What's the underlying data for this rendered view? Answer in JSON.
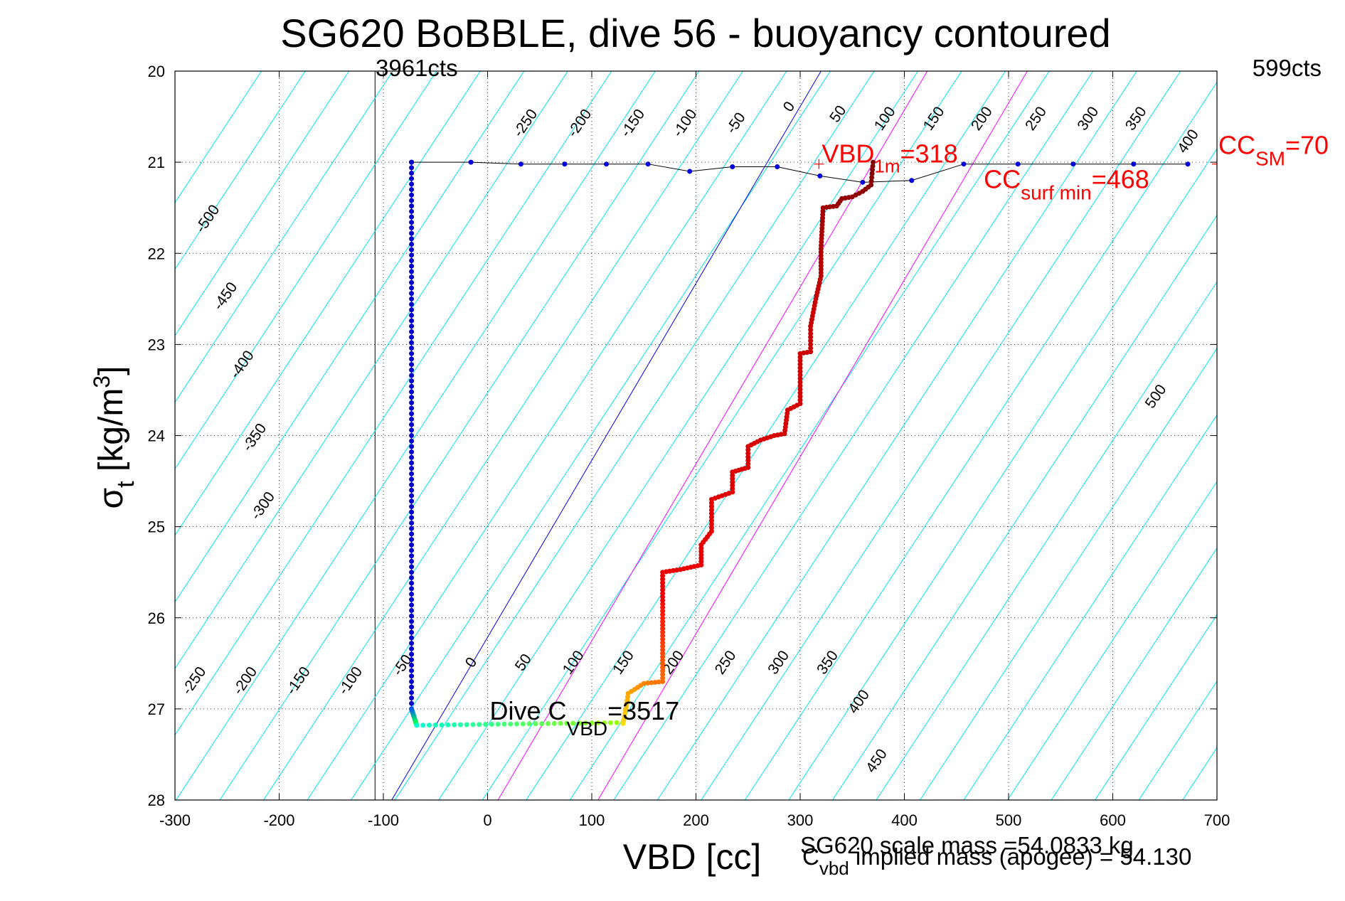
{
  "chart_data": {
    "type": "scatter",
    "title": "SG620 BoBBLE, dive 56 - buoyancy contoured",
    "xlabel": "VBD [cc]",
    "ylabel": {
      "main": "σ",
      "sub": "t",
      "unit_pre": " [kg/m",
      "unit_sup": "3",
      "unit_post": "]"
    },
    "xlim": [
      -300,
      700
    ],
    "ylim": [
      20,
      28
    ],
    "y_reversed": true,
    "grid": true,
    "xticks": [
      "-300",
      "-200",
      "-100",
      "0",
      "100",
      "200",
      "300",
      "400",
      "500",
      "600",
      "700"
    ],
    "yticks": [
      "20",
      "21",
      "22",
      "23",
      "24",
      "25",
      "26",
      "27",
      "28"
    ],
    "corner_labels": {
      "left": "3961cts",
      "right": "599cts"
    },
    "vertical_line_vbd": -108,
    "annotations": {
      "vbd_1m": {
        "main": "VBD",
        "sub": "1m",
        "value": "=318",
        "x": 318,
        "y": 21.02
      },
      "cc_surf_min": {
        "main": "CC",
        "sub": "surf min",
        "value": "=468",
        "x": 468,
        "y": 21.05
      },
      "cc_sm": {
        "main": "CC",
        "sub": "SM",
        "value": "=70",
        "x": 700,
        "y": 21.02
      },
      "dive_cvbd": {
        "main": "Dive C",
        "sub": "VBD",
        "value": "=3517",
        "x": 0,
        "y": 27.18
      }
    },
    "footer": {
      "scale_mass": "SG620 scale mass =54.0833 kg",
      "implied_mass": {
        "main": "C",
        "sub": "vbd",
        "text": " implied mass (apogee) = 54.130"
      }
    },
    "upper_contours": {
      "labels": [
        "-500",
        "-450",
        "-400",
        "-350",
        "-300",
        "-250",
        "-200",
        "-150",
        "-100",
        "-50",
        "0",
        "50",
        "100",
        "150",
        "200",
        "250",
        "300",
        "350",
        "400",
        "500"
      ]
    },
    "lower_contours": {
      "labels": [
        "-250",
        "-200",
        "-150",
        "-100",
        "-50",
        "0",
        "50",
        "100",
        "150",
        "200",
        "250",
        "300",
        "350",
        "400",
        "450"
      ]
    },
    "series": [
      {
        "color": "#0000ff",
        "description_visible": false,
        "points": [
          [
            -73,
            21.0
          ],
          [
            -16,
            21.0
          ],
          [
            32,
            21.02
          ],
          [
            74,
            21.02
          ],
          [
            114,
            21.02
          ],
          [
            154,
            21.02
          ],
          [
            194,
            21.1
          ],
          [
            235,
            21.05
          ],
          [
            278,
            21.05
          ],
          [
            319,
            21.15
          ],
          [
            360,
            21.22
          ],
          [
            407,
            21.2
          ],
          [
            457,
            21.02
          ],
          [
            509,
            21.02
          ],
          [
            562,
            21.02
          ],
          [
            620,
            21.02
          ],
          [
            672,
            21.02
          ]
        ]
      },
      {
        "color": "#0000cc",
        "points_descent": [
          [
            -73,
            21.0
          ],
          [
            -73,
            27.0
          ],
          [
            -72,
            27.1
          ],
          [
            -68,
            27.18
          ]
        ]
      },
      {
        "color": "#00ffcc",
        "points_bottom": [
          [
            -68,
            27.18
          ],
          [
            130,
            27.16
          ]
        ]
      },
      {
        "color": "#cc0000",
        "points_ascent": [
          [
            130,
            27.16
          ],
          [
            132,
            27.05
          ],
          [
            135,
            26.83
          ],
          [
            150,
            26.72
          ],
          [
            168,
            26.7
          ],
          [
            168,
            25.5
          ],
          [
            185,
            25.47
          ],
          [
            205,
            25.42
          ],
          [
            205,
            25.2
          ],
          [
            215,
            25.05
          ],
          [
            215,
            24.7
          ],
          [
            235,
            24.62
          ],
          [
            235,
            24.4
          ],
          [
            250,
            24.35
          ],
          [
            250,
            24.12
          ],
          [
            262,
            24.05
          ],
          [
            275,
            24.0
          ],
          [
            285,
            23.98
          ],
          [
            288,
            23.72
          ],
          [
            300,
            23.65
          ],
          [
            300,
            23.1
          ],
          [
            310,
            23.08
          ],
          [
            310,
            22.8
          ],
          [
            315,
            22.5
          ],
          [
            320,
            22.25
          ],
          [
            320,
            21.95
          ],
          [
            322,
            21.5
          ],
          [
            335,
            21.48
          ],
          [
            340,
            21.4
          ],
          [
            350,
            21.38
          ],
          [
            360,
            21.32
          ],
          [
            368,
            21.25
          ],
          [
            370,
            21.0
          ]
        ]
      }
    ]
  }
}
